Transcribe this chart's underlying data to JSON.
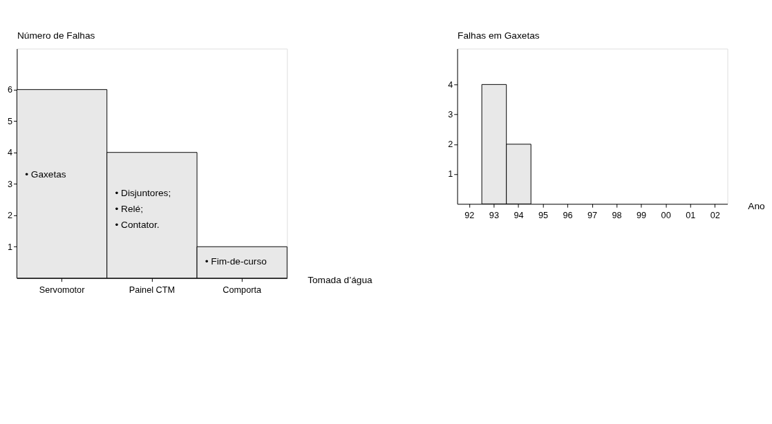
{
  "chart_data": [
    {
      "type": "bar",
      "ylabel": "Número de Falhas",
      "xlabel": "Tomada d’água",
      "categories": [
        "Servomotor",
        "Painel CTM",
        "Comporta"
      ],
      "values": [
        6,
        4,
        1
      ],
      "color": "#e8e8e8",
      "ylim": [
        0,
        7.3
      ],
      "yticks": [
        1,
        2,
        3,
        4,
        5,
        6
      ],
      "grid": false,
      "annotations": [
        "• Gaxetas",
        "• Disjuntores;",
        "• Relé;",
        "• Contator.",
        "• Fim-de-curso"
      ]
    },
    {
      "type": "bar",
      "ylabel": "Falhas em Gaxetas",
      "xlabel": "Ano",
      "categories": [
        "92",
        "93",
        "94",
        "95",
        "96",
        "97",
        "98",
        "99",
        "00",
        "01",
        "02"
      ],
      "values": [
        null,
        4,
        2,
        null,
        null,
        null,
        null,
        null,
        null,
        null,
        null
      ],
      "color": "#e8e8e8",
      "ylim": [
        0,
        5.2
      ],
      "yticks": [
        1,
        2,
        3,
        4
      ],
      "grid": false
    }
  ]
}
